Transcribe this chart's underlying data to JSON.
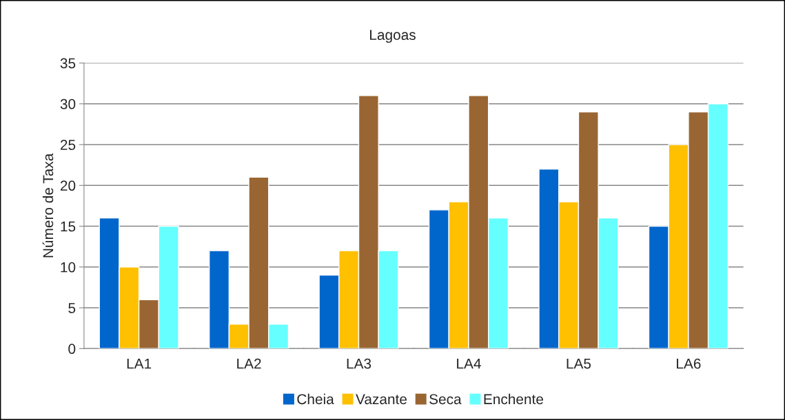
{
  "chart_data": {
    "type": "bar",
    "title": "Lagoas",
    "ylabel": "Número de Taxa",
    "categories": [
      "LA1",
      "LA2",
      "LA3",
      "LA4",
      "LA5",
      "LA6"
    ],
    "series": [
      {
        "name": "Cheia",
        "color": "#0066cc",
        "values": [
          16,
          12,
          9,
          17,
          22,
          15
        ]
      },
      {
        "name": "Vazante",
        "color": "#ffc000",
        "values": [
          10,
          3,
          12,
          18,
          18,
          25
        ]
      },
      {
        "name": "Seca",
        "color": "#996633",
        "values": [
          6,
          21,
          31,
          31,
          29,
          29
        ]
      },
      {
        "name": "Enchente",
        "color": "#66ffff",
        "values": [
          15,
          3,
          12,
          16,
          16,
          30
        ]
      }
    ],
    "ylim": [
      0,
      35
    ],
    "yticks": [
      0,
      5,
      10,
      15,
      20,
      25,
      30,
      35
    ],
    "grid": "y",
    "legend": "bottom"
  }
}
